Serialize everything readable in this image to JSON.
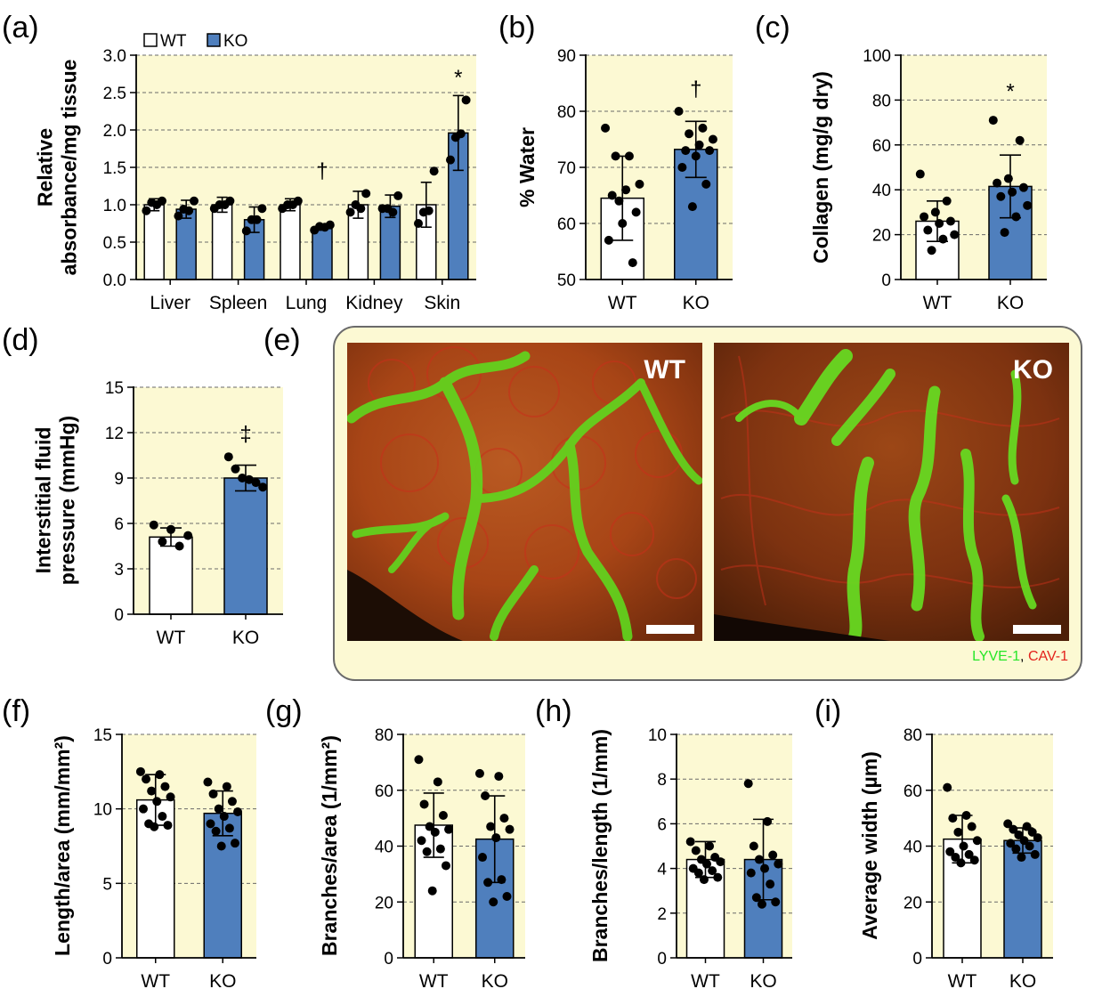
{
  "colors": {
    "wt_fill": "#ffffff",
    "ko_fill": "#4f7fbd",
    "plot_bg": "#fcf9d3",
    "grid": "#6a6a6a",
    "lyve": "#27e627",
    "cav": "#e3221c"
  },
  "panels": {
    "a": "(a)",
    "b": "(b)",
    "c": "(c)",
    "d": "(d)",
    "e": "(e)",
    "f": "(f)",
    "g": "(g)",
    "h": "(h)",
    "i": "(i)"
  },
  "legend": {
    "wt": "WT",
    "ko": "KO"
  },
  "micrographs": {
    "wt_label": "WT",
    "ko_label": "KO",
    "stain_lyve": "LYVE-1",
    "stain_sep": ", ",
    "stain_cav": "CAV-1"
  },
  "chart_data": [
    {
      "id": "a",
      "type": "bar",
      "ylabel_lines": [
        "Relative",
        "absorbance/mg tissue"
      ],
      "ylim": [
        0,
        3.0
      ],
      "yticks": [
        "0.0",
        "0.5",
        "1.0",
        "1.5",
        "2.0",
        "2.5",
        "3.0"
      ],
      "categories": [
        "Liver",
        "Spleen",
        "Lung",
        "Kidney",
        "Skin"
      ],
      "series": [
        {
          "name": "WT",
          "values": [
            1.0,
            1.0,
            1.0,
            1.0,
            1.0
          ],
          "sd": [
            0.08,
            0.1,
            0.08,
            0.18,
            0.3
          ],
          "points": [
            [
              0.92,
              1.05,
              1.0,
              1.03
            ],
            [
              0.95,
              1.05,
              1.0,
              1.0
            ],
            [
              0.95,
              1.05,
              1.0,
              1.0
            ],
            [
              0.9,
              1.15,
              0.95,
              1.0
            ],
            [
              0.75,
              1.45,
              0.92,
              0.9
            ]
          ]
        },
        {
          "name": "KO",
          "values": [
            0.94,
            0.8,
            0.7,
            0.98,
            1.96
          ],
          "sd": [
            0.12,
            0.17,
            0.04,
            0.15,
            0.5
          ],
          "points": [
            [
              0.85,
              1.05,
              0.92,
              0.94
            ],
            [
              0.65,
              0.95,
              0.8,
              0.8
            ],
            [
              0.66,
              0.73,
              0.7,
              0.71
            ],
            [
              0.95,
              1.12,
              0.9,
              0.95
            ],
            [
              1.6,
              2.4,
              1.95,
              1.9
            ]
          ]
        }
      ],
      "annotations": [
        {
          "category": "Lung",
          "text": "†",
          "y": 1.45
        },
        {
          "category": "Skin",
          "text": "*",
          "y": 2.7
        }
      ]
    },
    {
      "id": "b",
      "type": "bar",
      "ylabel_lines": [
        "% Water"
      ],
      "ylim": [
        50,
        90
      ],
      "yticks": [
        "50",
        "60",
        "70",
        "80",
        "90"
      ],
      "categories": [
        "WT",
        "KO"
      ],
      "values": [
        64.5,
        73.2
      ],
      "sd": [
        7.5,
        5.0
      ],
      "points": [
        [
          77,
          72,
          72,
          67,
          66,
          65,
          62,
          60,
          57,
          53,
          64
        ],
        [
          80,
          77,
          76,
          75,
          74,
          73,
          73,
          72,
          70,
          67,
          63
        ]
      ],
      "annotations": [
        {
          "category": "KO",
          "text": "†",
          "y": 84
        }
      ]
    },
    {
      "id": "c",
      "type": "bar",
      "ylabel_lines": [
        "Collagen (mg/g dry)"
      ],
      "ylim": [
        0,
        100
      ],
      "yticks": [
        "0",
        "20",
        "40",
        "60",
        "80",
        "100"
      ],
      "categories": [
        "WT",
        "KO"
      ],
      "values": [
        26,
        41.5
      ],
      "sd": [
        9,
        14
      ],
      "points": [
        [
          47,
          35,
          30,
          28,
          26,
          25,
          22,
          20,
          18,
          13
        ],
        [
          71,
          62,
          45,
          43,
          41,
          39,
          37,
          33,
          28,
          21
        ]
      ],
      "annotations": [
        {
          "category": "KO",
          "text": "*",
          "y": 84
        }
      ]
    },
    {
      "id": "d",
      "type": "bar",
      "ylabel_lines": [
        "Interstitial fluid",
        "pressure (mmHg)"
      ],
      "ylim": [
        0,
        15
      ],
      "yticks": [
        "0",
        "3",
        "6",
        "9",
        "12",
        "15"
      ],
      "categories": [
        "WT",
        "KO"
      ],
      "values": [
        5.1,
        9.0
      ],
      "sd": [
        0.6,
        0.85
      ],
      "points": [
        [
          5.9,
          5.6,
          5.2,
          4.8,
          4.5
        ],
        [
          10.4,
          9.6,
          9.0,
          8.9,
          8.7,
          8.4
        ]
      ],
      "annotations": [
        {
          "category": "KO",
          "text": "‡",
          "y": 11.9
        }
      ]
    },
    {
      "id": "f",
      "type": "bar",
      "ylabel_lines": [
        "Length/area (mm/mm²)"
      ],
      "ylim": [
        0,
        15
      ],
      "yticks": [
        "0",
        "5",
        "10",
        "15"
      ],
      "categories": [
        "WT",
        "KO"
      ],
      "values": [
        10.6,
        9.7
      ],
      "sd": [
        1.7,
        1.5
      ],
      "points": [
        [
          12.5,
          12.3,
          12.0,
          11.5,
          11.2,
          10.8,
          10.5,
          10.0,
          9.5,
          9.0,
          8.9,
          8.8
        ],
        [
          11.8,
          11.5,
          11.0,
          10.5,
          10.0,
          9.8,
          9.5,
          9.0,
          8.7,
          8.5,
          7.7,
          7.5
        ]
      ]
    },
    {
      "id": "g",
      "type": "bar",
      "ylabel_lines": [
        "Branches/area (1/mm²)"
      ],
      "ylim": [
        0,
        80
      ],
      "yticks": [
        "0",
        "20",
        "40",
        "60",
        "80"
      ],
      "categories": [
        "WT",
        "KO"
      ],
      "values": [
        47.5,
        42.5
      ],
      "sd": [
        11.5,
        15.5
      ],
      "points": [
        [
          71,
          63,
          55,
          51,
          47,
          46,
          45,
          42,
          39,
          38,
          33,
          24
        ],
        [
          66,
          65,
          58,
          50,
          47,
          46,
          43,
          36,
          28,
          27,
          22,
          20
        ]
      ]
    },
    {
      "id": "h",
      "type": "bar",
      "ylabel_lines": [
        "Branches/length (1/mm)"
      ],
      "ylim": [
        0,
        10
      ],
      "yticks": [
        "0",
        "2",
        "4",
        "6",
        "8",
        "10"
      ],
      "categories": [
        "WT",
        "KO"
      ],
      "values": [
        4.4,
        4.4
      ],
      "sd": [
        0.8,
        1.8
      ],
      "points": [
        [
          5.2,
          5.0,
          4.8,
          4.5,
          4.4,
          4.3,
          4.2,
          4.0,
          3.9,
          3.8,
          3.6,
          3.5
        ],
        [
          7.8,
          6.1,
          5.0,
          4.6,
          4.4,
          4.2,
          4.0,
          3.8,
          3.3,
          2.7,
          2.5,
          2.4
        ]
      ]
    },
    {
      "id": "i",
      "type": "bar",
      "ylabel_lines": [
        "Average width (µm)"
      ],
      "ylim": [
        0,
        80
      ],
      "yticks": [
        "0",
        "20",
        "40",
        "60",
        "80"
      ],
      "categories": [
        "WT",
        "KO"
      ],
      "values": [
        42.5,
        42.0
      ],
      "sd": [
        8.5,
        4.5
      ],
      "points": [
        [
          61,
          51,
          50,
          47,
          45,
          42,
          40,
          38,
          37,
          36,
          35,
          34
        ],
        [
          48,
          47,
          46,
          45,
          44,
          43,
          42,
          41,
          40,
          39,
          37,
          36
        ]
      ]
    }
  ]
}
